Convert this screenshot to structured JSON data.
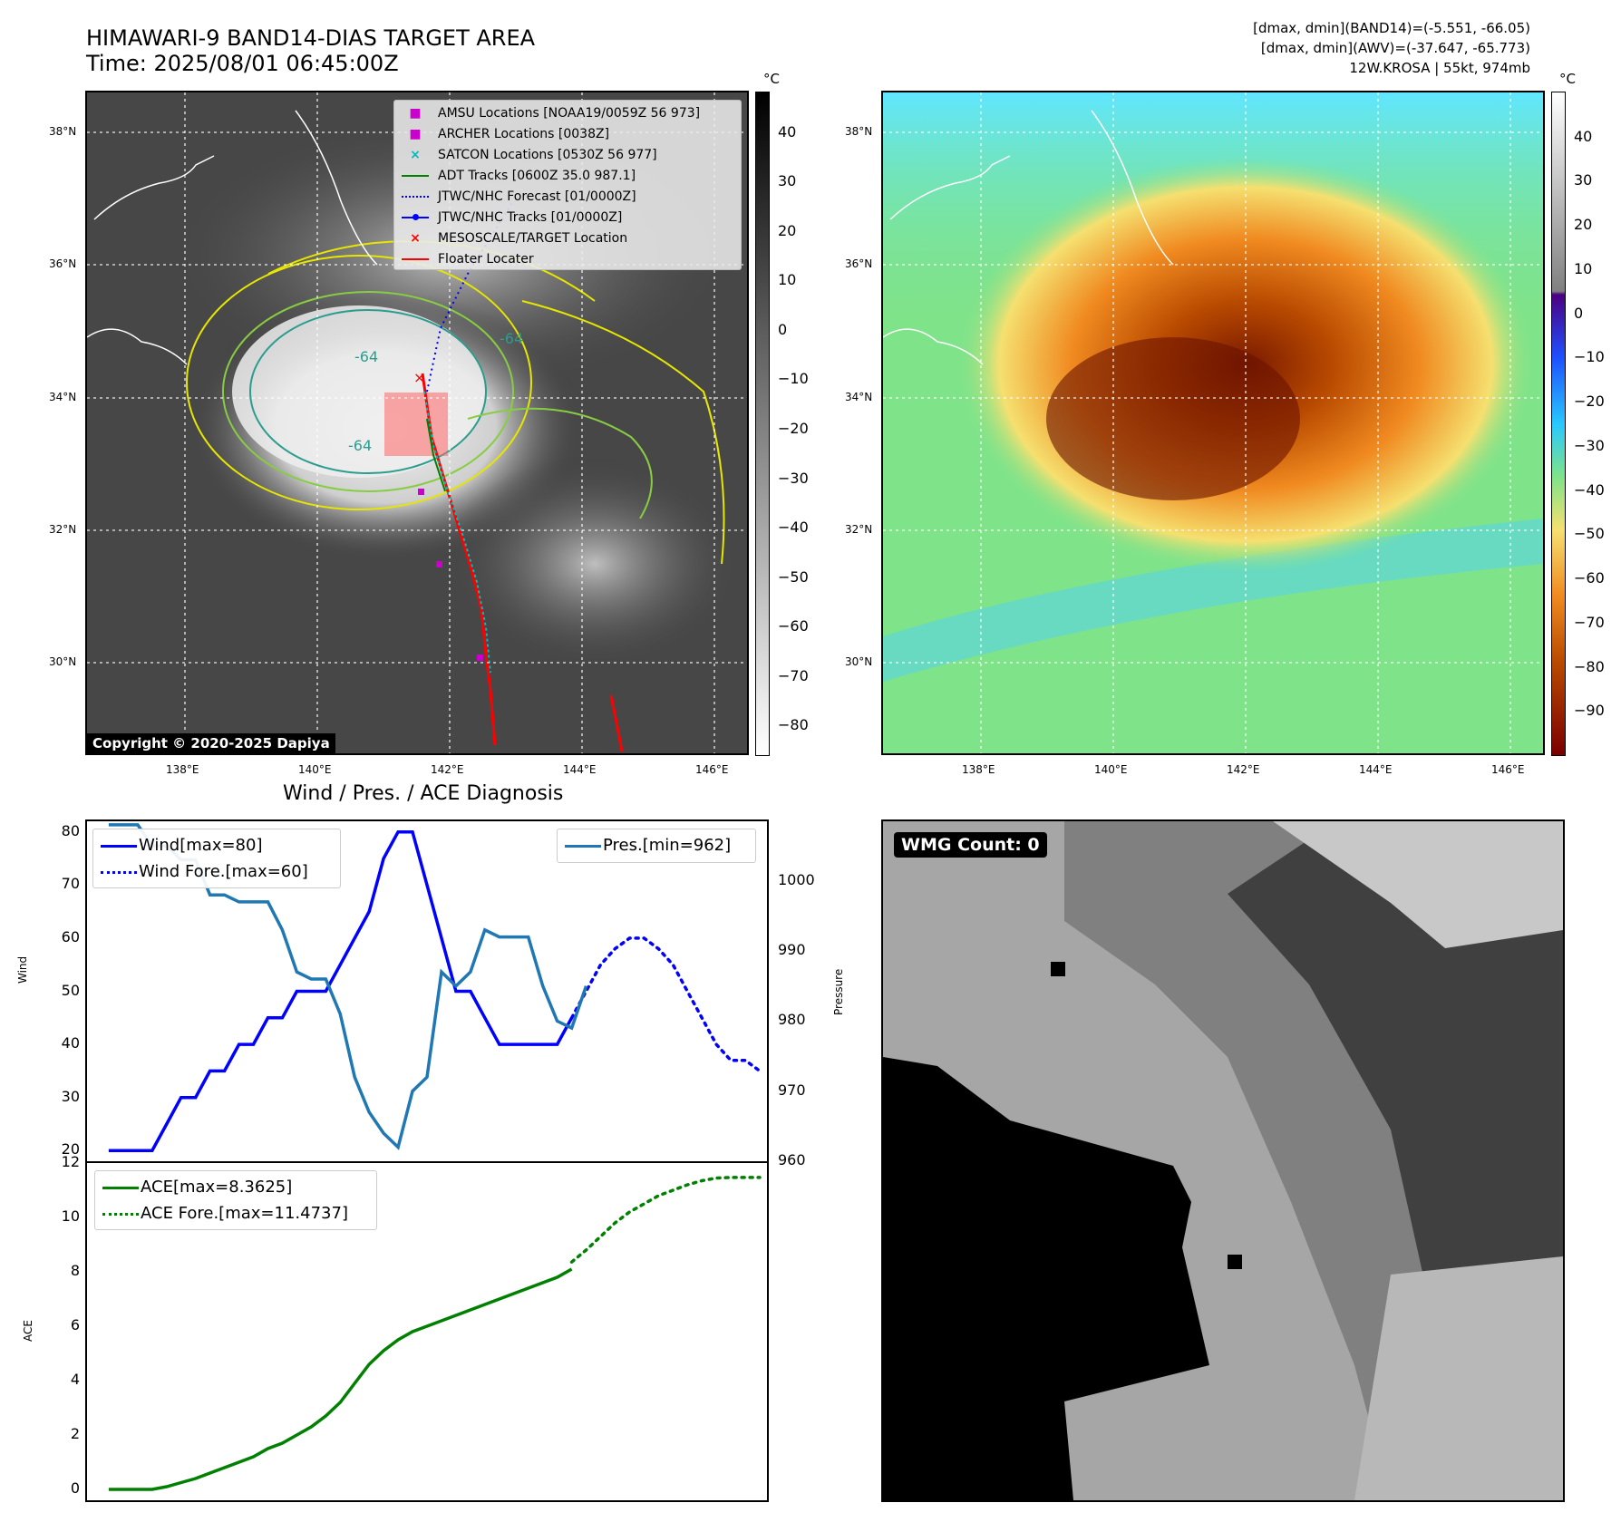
{
  "header": {
    "title_line1": "HIMAWARI-9 BAND14-DIAS TARGET AREA",
    "title_line2": "Time: 2025/08/01 06:45:00Z",
    "info_line1": "[dmax, dmin](BAND14)=(-5.551, -66.05)",
    "info_line2": "[dmax, dmin](AWV)=(-37.647, -65.773)",
    "info_line3": "12W.KROSA | 55kt, 974mb"
  },
  "map_ir": {
    "lat_labels": [
      "38°N",
      "36°N",
      "34°N",
      "32°N",
      "30°N"
    ],
    "lon_labels": [
      "138°E",
      "140°E",
      "142°E",
      "144°E",
      "146°E"
    ],
    "contour_labels": [
      "-64",
      "-64",
      "-64"
    ],
    "copyright": "Copyright © 2020-2025 Dapiya",
    "legend": [
      {
        "label": "AMSU Locations [NOAA19/0059Z 56 973]",
        "icon": "square-marker",
        "color": "#cc00cc"
      },
      {
        "label": "ARCHER Locations [0038Z]",
        "icon": "square-marker",
        "color": "#cc00cc"
      },
      {
        "label": "SATCON Locations [0530Z 56 977]",
        "icon": "x-marker",
        "color": "#00bbbb"
      },
      {
        "label": "ADT Tracks [0600Z 35.0 987.1]",
        "icon": "solid-line",
        "color": "#008000"
      },
      {
        "label": "JTWC/NHC Forecast [01/0000Z]",
        "icon": "dotted-line",
        "color": "#0000ff"
      },
      {
        "label": "JTWC/NHC Tracks [01/0000Z]",
        "icon": "line-dot",
        "color": "#0000ff"
      },
      {
        "label": "MESOSCALE/TARGET Location",
        "icon": "x-marker",
        "color": "#ff0000"
      },
      {
        "label": "Floater Locater",
        "icon": "solid-line",
        "color": "#ff0000"
      }
    ],
    "colorbar": {
      "unit": "°C",
      "ticks": [
        "40",
        "30",
        "20",
        "10",
        "0",
        "−10",
        "−20",
        "−30",
        "−40",
        "−50",
        "−60",
        "−70",
        "−80"
      ]
    }
  },
  "map_wv": {
    "lat_labels": [
      "38°N",
      "36°N",
      "34°N",
      "32°N",
      "30°N"
    ],
    "lon_labels": [
      "138°E",
      "140°E",
      "142°E",
      "144°E",
      "146°E"
    ],
    "colorbar": {
      "unit": "°C",
      "ticks": [
        "40",
        "30",
        "20",
        "10",
        "0",
        "−10",
        "−20",
        "−30",
        "−40",
        "−50",
        "−60",
        "−70",
        "−80",
        "−90"
      ]
    }
  },
  "diagnosis": {
    "title": "Wind / Pres. / ACE Diagnosis",
    "wind_axis_label": "Wind",
    "pressure_axis_label": "Pressure",
    "ace_axis_label": "ACE",
    "wind_ticks": [
      "80",
      "70",
      "60",
      "50",
      "40",
      "30",
      "20"
    ],
    "pressure_ticks": [
      "1000",
      "990",
      "980",
      "970",
      "960"
    ],
    "ace_ticks": [
      "12",
      "10",
      "8",
      "6",
      "4",
      "2",
      "0"
    ],
    "legend_wind": "Wind[max=80]",
    "legend_wind_fore": "Wind Fore.[max=60]",
    "legend_pres": "Pres.[min=962]",
    "legend_ace": "ACE[max=8.3625]",
    "legend_ace_fore": "ACE Fore.[max=11.4737]"
  },
  "wmg": {
    "label": "WMG Count: 0"
  },
  "chart_data": [
    {
      "type": "line",
      "title": "Wind / Pres. / ACE Diagnosis",
      "ylabel": "Wind",
      "ylim": [
        18,
        82
      ],
      "x": [
        0,
        1,
        2,
        3,
        4,
        5,
        6,
        7,
        8,
        9,
        10,
        11,
        12,
        13,
        14,
        15,
        16,
        17,
        18,
        19,
        20,
        21,
        22,
        23,
        24,
        25,
        26,
        27,
        28,
        29,
        30,
        31,
        32,
        33,
        34,
        35,
        36,
        37,
        38,
        39,
        40,
        41
      ],
      "series": [
        {
          "name": "Wind[max=80]",
          "color": "#0000ff",
          "style": "solid",
          "x": [
            0,
            1,
            2,
            3,
            4,
            5,
            6,
            7,
            8,
            9,
            10,
            11,
            12,
            13,
            14,
            15,
            16,
            17,
            18,
            19,
            20,
            21,
            22,
            23,
            24,
            25,
            26,
            27,
            28,
            29,
            30,
            31,
            32
          ],
          "values": [
            20,
            20,
            20,
            20,
            25,
            30,
            30,
            35,
            35,
            40,
            40,
            45,
            45,
            50,
            50,
            50,
            55,
            60,
            65,
            75,
            80,
            80,
            70,
            60,
            50,
            50,
            45,
            40,
            40,
            40,
            40,
            40,
            45
          ]
        },
        {
          "name": "Wind Fore.[max=60]",
          "color": "#0000ff",
          "style": "dotted",
          "x": [
            32,
            33,
            34,
            35,
            36,
            37,
            38,
            39,
            40,
            41,
            42,
            43,
            44,
            45
          ],
          "values": [
            45,
            50,
            55,
            58,
            60,
            60,
            58,
            55,
            50,
            45,
            40,
            37,
            37,
            35
          ]
        },
        {
          "name": "Pres.[min=962]",
          "color": "#1f77b4",
          "style": "solid",
          "axis": "right",
          "ylim": [
            960,
            1008
          ],
          "x": [
            0,
            1,
            2,
            3,
            4,
            5,
            6,
            7,
            8,
            9,
            10,
            11,
            12,
            13,
            14,
            15,
            16,
            17,
            18,
            19,
            20,
            21,
            22,
            23,
            24,
            25,
            26,
            27,
            28,
            29,
            30,
            31,
            32,
            33
          ],
          "values": [
            1008,
            1008,
            1008,
            1005,
            1005,
            1003,
            1003,
            998,
            998,
            997,
            997,
            997,
            993,
            987,
            986,
            986,
            981,
            972,
            967,
            964,
            962,
            970,
            972,
            987,
            985,
            987,
            993,
            992,
            992,
            992,
            985,
            980,
            979,
            985
          ]
        }
      ]
    },
    {
      "type": "line",
      "ylabel": "ACE",
      "ylim": [
        -0.4,
        12
      ],
      "series": [
        {
          "name": "ACE[max=8.3625]",
          "color": "#008000",
          "style": "solid",
          "x": [
            0,
            1,
            2,
            3,
            4,
            5,
            6,
            7,
            8,
            9,
            10,
            11,
            12,
            13,
            14,
            15,
            16,
            17,
            18,
            19,
            20,
            21,
            22,
            23,
            24,
            25,
            26,
            27,
            28,
            29,
            30,
            31,
            32
          ],
          "values": [
            0,
            0,
            0,
            0,
            0.1,
            0.25,
            0.4,
            0.6,
            0.8,
            1.0,
            1.2,
            1.5,
            1.7,
            2.0,
            2.3,
            2.7,
            3.2,
            3.9,
            4.6,
            5.1,
            5.5,
            5.8,
            6.0,
            6.2,
            6.4,
            6.6,
            6.8,
            7.0,
            7.2,
            7.4,
            7.6,
            7.8,
            8.1
          ]
        },
        {
          "name": "ACE Fore.[max=11.4737]",
          "color": "#008000",
          "style": "dotted",
          "x": [
            32,
            33,
            34,
            35,
            36,
            37,
            38,
            39,
            40,
            41,
            42,
            43,
            44,
            45
          ],
          "values": [
            8.36,
            8.8,
            9.3,
            9.8,
            10.2,
            10.5,
            10.8,
            11.0,
            11.2,
            11.35,
            11.45,
            11.47,
            11.47,
            11.47
          ]
        }
      ]
    }
  ]
}
